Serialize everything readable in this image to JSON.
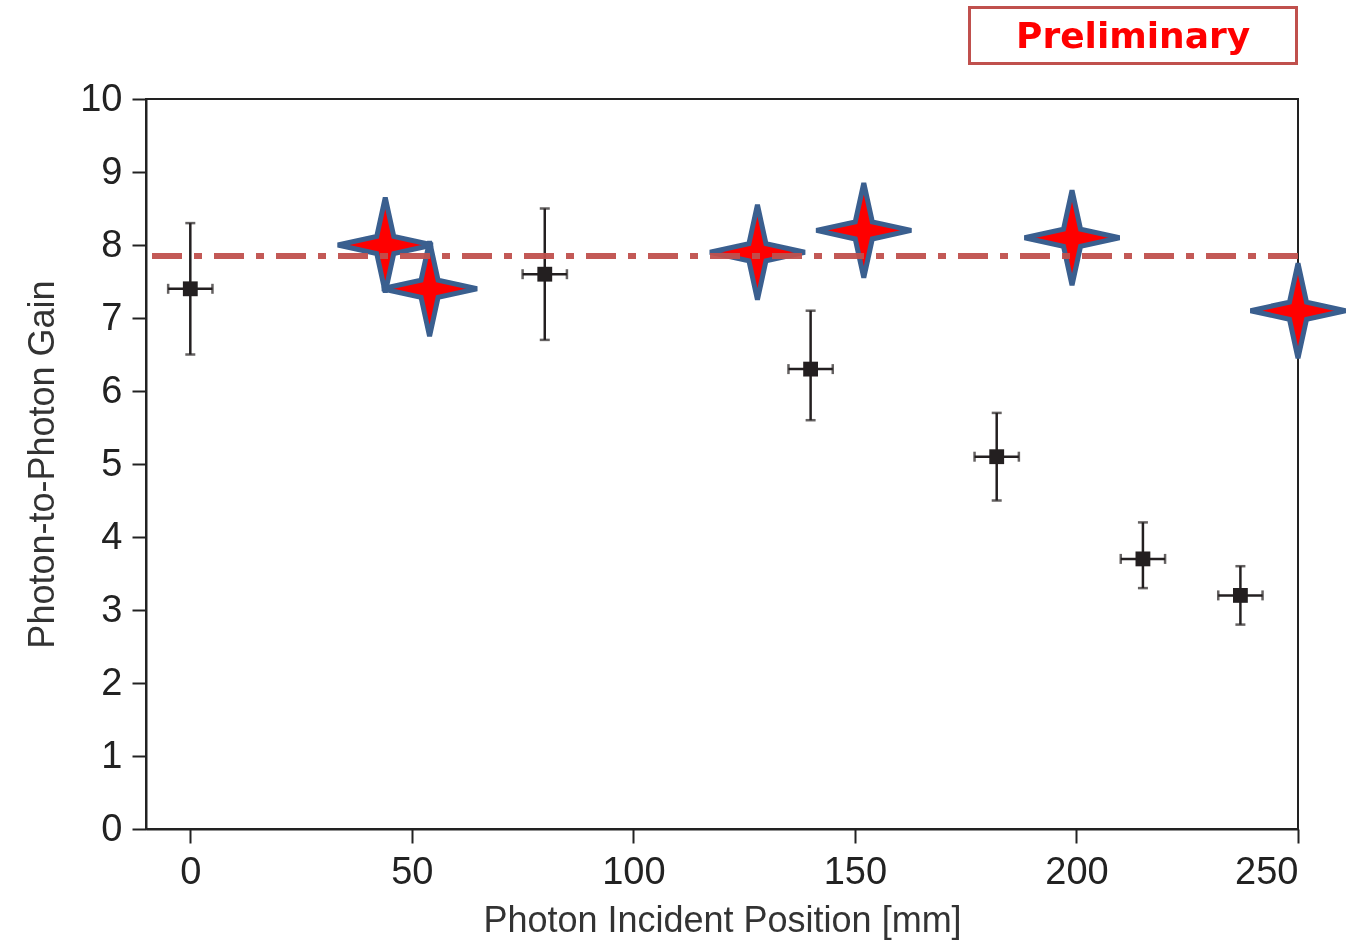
{
  "chart_data": {
    "type": "scatter",
    "xlabel": "Photon Incident Position [mm]",
    "ylabel": "Photon-to-Photon Gain",
    "xlim": [
      -10,
      250
    ],
    "xticks": [
      0,
      50,
      100,
      150,
      200,
      250
    ],
    "ylim": [
      0,
      10
    ],
    "yticks": [
      0,
      1,
      2,
      3,
      4,
      5,
      6,
      7,
      8,
      9,
      10
    ],
    "series": [
      {
        "color": "#231f20",
        "marker": "square",
        "x": [
          0,
          80,
          140,
          182,
          215,
          237
        ],
        "values": [
          7.4,
          7.6,
          6.3,
          5.1,
          3.7,
          3.2
        ],
        "errors": [
          [
            6.5,
            8.3
          ],
          [
            6.7,
            8.5
          ],
          [
            5.6,
            7.1
          ],
          [
            4.5,
            5.7
          ],
          [
            3.3,
            4.2
          ],
          [
            2.8,
            3.6
          ]
        ],
        "xerrors": [
          5,
          5,
          5,
          5,
          5,
          5
        ]
      },
      {
        "color": "#ff0000",
        "marker": "star",
        "x": [
          44,
          54,
          128,
          152,
          199,
          250
        ],
        "values": [
          8.0,
          7.4,
          7.9,
          8.2,
          8.1,
          7.1
        ]
      }
    ],
    "ref_lines": [
      {
        "axis": "y",
        "value": 7.85,
        "color": "#c0504d",
        "line_style": "dashed"
      }
    ],
    "annotations": [
      "Preliminary"
    ],
    "grid": false
  }
}
